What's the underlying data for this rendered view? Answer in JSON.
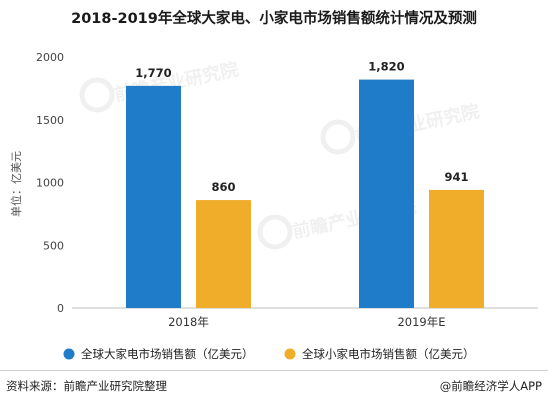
{
  "title": "2018-2019年全球大家电、小家电市场销售额统计情况及预测",
  "source_text": "资料来源：前瞻产业研究院整理",
  "brand_text": "@前瞻经济学人APP",
  "watermark_text": "前瞻产业研究院",
  "colors": {
    "blue": "#1f7cc9",
    "orange": "#f0ad2a",
    "axis": "#bfbfbf"
  },
  "chart_data": {
    "type": "bar",
    "categories": [
      "2018年",
      "2019年E"
    ],
    "series": [
      {
        "name": "全球大家电市场销售额（亿美元）",
        "values": [
          1770,
          1820
        ],
        "labels": [
          "1,770",
          "1,820"
        ],
        "color": "#1f7cc9"
      },
      {
        "name": "全球小家电市场销售额（亿美元）",
        "values": [
          860,
          941
        ],
        "labels": [
          "860",
          "941"
        ],
        "color": "#f0ad2a"
      }
    ],
    "ylabel": "单位：亿美元",
    "ylim": [
      0,
      2000
    ],
    "yticks": [
      0,
      500,
      1000,
      1500,
      2000
    ],
    "grid": false,
    "legend": "bottom"
  }
}
